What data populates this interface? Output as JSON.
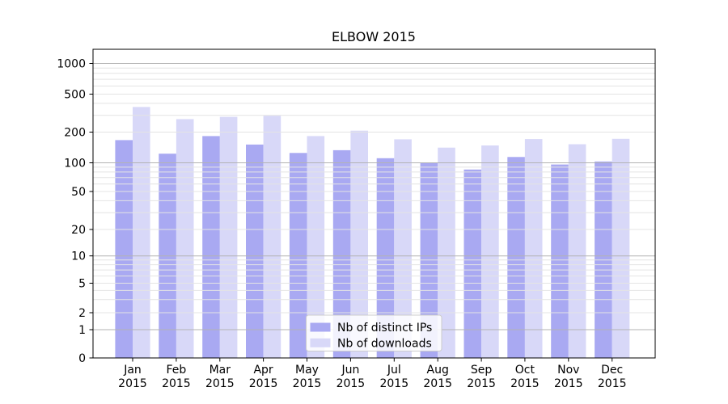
{
  "chart_data": {
    "type": "bar",
    "title": "ELBOW 2015",
    "xlabel": "",
    "ylabel": "",
    "yscale": "symlog",
    "ylim": [
      0,
      1400
    ],
    "grid": true,
    "legend_position": "bottom-center",
    "yticks": [
      0,
      1,
      2,
      5,
      10,
      20,
      50,
      100,
      200,
      500,
      1000
    ],
    "major_grid_values": [
      1,
      10,
      100,
      1000
    ],
    "minor_grid_values": [
      3,
      4,
      6,
      7,
      8,
      9,
      30,
      40,
      60,
      70,
      80,
      90,
      300,
      400,
      600,
      700,
      800,
      900
    ],
    "categories": [
      "Jan",
      "Feb",
      "Mar",
      "Apr",
      "May",
      "Jun",
      "Jul",
      "Aug",
      "Sep",
      "Oct",
      "Nov",
      "Dec"
    ],
    "year_label": "2015",
    "series": [
      {
        "name": "Nb of distinct IPs",
        "color": "#a9a9f2",
        "values": [
          167,
          123,
          183,
          151,
          125,
          133,
          111,
          100,
          85,
          114,
          96,
          103
        ]
      },
      {
        "name": "Nb of downloads",
        "color": "#d8d8f8",
        "values": [
          367,
          274,
          289,
          297,
          183,
          207,
          170,
          141,
          148,
          171,
          152,
          172
        ]
      }
    ],
    "colors": {
      "major_grid": "#b3b3b3",
      "minor_grid": "#e4e4e4",
      "axis": "#000000",
      "legend_border": "#cccccc",
      "legend_bg": "#ffffff"
    }
  }
}
